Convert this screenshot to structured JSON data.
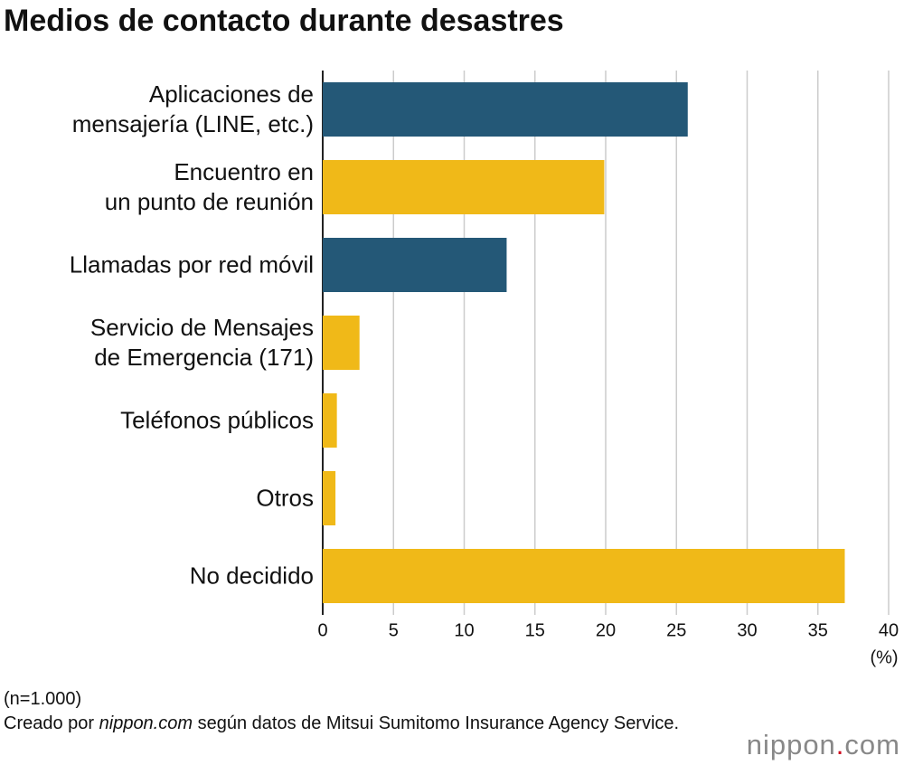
{
  "chart_data": {
    "type": "barh",
    "title": "Medios de contacto durante desastres",
    "categories": [
      "Aplicaciones de\nmensajería (LINE, etc.)",
      "Encuentro en\nun punto de reunión",
      "Llamadas por red móvil",
      "Servicio de Mensajes\nde Emergencia (171)",
      "Teléfonos públicos",
      "Otros",
      "No decidido"
    ],
    "values": [
      25.8,
      19.9,
      13.0,
      2.6,
      1.0,
      0.9,
      36.9
    ],
    "colors": [
      "#245877",
      "#f0b918",
      "#245877",
      "#f0b918",
      "#f0b918",
      "#f0b918",
      "#f0b918"
    ],
    "xlim": [
      0,
      40
    ],
    "xticks": [
      0,
      5,
      10,
      15,
      20,
      25,
      30,
      35,
      40
    ],
    "xlabel": "(%)",
    "grid": true
  },
  "note": "(n=1.000)",
  "source": [
    "Creado por",
    "nippon.com",
    "según datos de Mitsui Sumitomo Insurance Agency Service."
  ],
  "logo": [
    "nippon",
    ".",
    "com"
  ]
}
